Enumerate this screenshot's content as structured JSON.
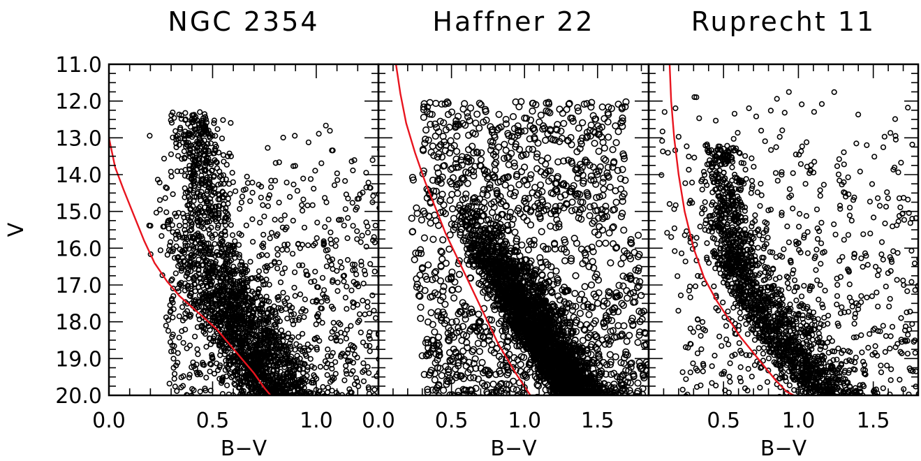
{
  "chart_data": [
    {
      "type": "scatter",
      "title": "NGC 2354",
      "xlabel": "B−V",
      "ylabel": "V",
      "xlim": [
        0.0,
        1.3
      ],
      "ylim": [
        20.0,
        11.0
      ],
      "y_inverted": true,
      "x_ticks": [
        "0.0",
        "0.5",
        "1.0"
      ],
      "x_tick_values": [
        0.0,
        0.5,
        1.0
      ],
      "y_ticks": [
        "11.0",
        "12.0",
        "13.0",
        "14.0",
        "15.0",
        "16.0",
        "17.0",
        "18.0",
        "19.0",
        "20.0"
      ],
      "y_tick_values": [
        11,
        12,
        13,
        14,
        15,
        16,
        17,
        18,
        19,
        20
      ],
      "isochrone": {
        "color": "#e8141e",
        "x": [
          0.0,
          0.03,
          0.07,
          0.12,
          0.17,
          0.22,
          0.28,
          0.34,
          0.4,
          0.46,
          0.52,
          0.58,
          0.64,
          0.7,
          0.75,
          0.78
        ],
        "y": [
          13.0,
          13.8,
          14.4,
          15.1,
          15.8,
          16.4,
          16.9,
          17.3,
          17.6,
          17.9,
          18.2,
          18.6,
          19.0,
          19.4,
          19.8,
          20.0
        ]
      },
      "stars": {
        "count": 2800,
        "marker": "open-circle",
        "features": [
          {
            "region": "upper main sequence / turnoff",
            "x": [
              0.35,
              0.55
            ],
            "y": [
              12.2,
              15.0
            ]
          },
          {
            "region": "main sequence",
            "x": [
              0.45,
              0.85
            ],
            "y": [
              15.0,
              20.0
            ]
          },
          {
            "region": "field stars",
            "x": [
              0.2,
              1.3
            ],
            "y": [
              12.4,
              20.0
            ]
          }
        ]
      }
    },
    {
      "type": "scatter",
      "title": "Haffner 22",
      "xlabel": "B−V",
      "xlim": [
        0.0,
        1.85
      ],
      "ylim": [
        20.0,
        11.0
      ],
      "y_inverted": true,
      "x_ticks": [
        "0.0",
        "0.5",
        "1.0",
        "1.5"
      ],
      "x_tick_values": [
        0.0,
        0.5,
        1.0,
        1.5
      ],
      "isochrone": {
        "color": "#e8141e",
        "x": [
          0.12,
          0.15,
          0.19,
          0.25,
          0.32,
          0.4,
          0.46,
          0.52,
          0.58,
          0.64,
          0.7,
          0.76,
          0.82,
          0.88,
          0.94,
          0.99,
          1.04
        ],
        "y": [
          11.0,
          11.8,
          12.6,
          13.4,
          14.2,
          15.0,
          15.6,
          16.1,
          16.6,
          17.1,
          17.6,
          18.1,
          18.6,
          19.0,
          19.4,
          19.7,
          20.0
        ]
      },
      "stars": {
        "count": 3800,
        "marker": "open-circle",
        "features": [
          {
            "region": "main sequence",
            "x": [
              0.55,
              1.35
            ],
            "y": [
              14.8,
              20.0
            ]
          },
          {
            "region": "upper stars",
            "x": [
              0.3,
              1.6
            ],
            "y": [
              12.0,
              15.0
            ]
          },
          {
            "region": "field stars",
            "x": [
              0.0,
              1.85
            ],
            "y": [
              11.5,
              20.0
            ]
          }
        ]
      }
    },
    {
      "type": "scatter",
      "title": "Ruprecht 11",
      "xlabel": "B−V",
      "xlim": [
        0.0,
        1.8
      ],
      "ylim": [
        20.0,
        11.0
      ],
      "y_inverted": true,
      "x_ticks": [
        "0.5",
        "1.0",
        "1.5"
      ],
      "x_tick_values": [
        0.5,
        1.0,
        1.5
      ],
      "isochrone": {
        "color": "#e8141e",
        "x": [
          0.14,
          0.15,
          0.17,
          0.2,
          0.24,
          0.3,
          0.37,
          0.45,
          0.53,
          0.61,
          0.69,
          0.77,
          0.85,
          0.92,
          0.97
        ],
        "y": [
          11.0,
          12.0,
          13.0,
          14.0,
          15.0,
          16.0,
          16.8,
          17.4,
          17.9,
          18.4,
          18.8,
          19.2,
          19.6,
          19.9,
          20.0
        ]
      },
      "stars": {
        "count": 2200,
        "marker": "open-circle",
        "features": [
          {
            "region": "main sequence",
            "x": [
              0.5,
              1.3
            ],
            "y": [
              14.0,
              20.0
            ]
          },
          {
            "region": "field stars",
            "x": [
              0.0,
              1.8
            ],
            "y": [
              11.0,
              20.0
            ]
          }
        ]
      }
    }
  ]
}
